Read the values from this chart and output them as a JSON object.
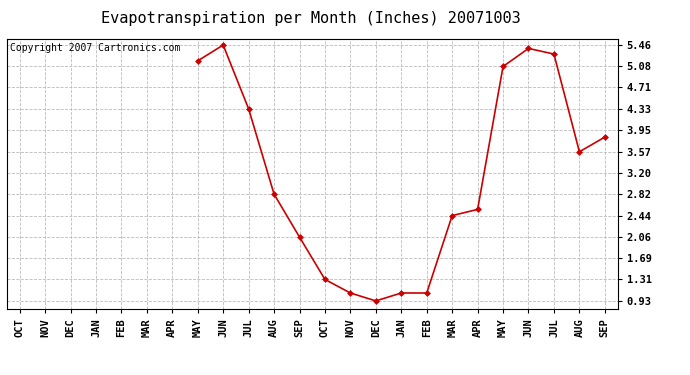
{
  "title": "Evapotranspiration per Month (Inches) 20071003",
  "copyright_text": "Copyright 2007 Cartronics.com",
  "months": [
    "OCT",
    "NOV",
    "DEC",
    "JAN",
    "FEB",
    "MAR",
    "APR",
    "MAY",
    "JUN",
    "JUL",
    "AUG",
    "SEP",
    "OCT",
    "NOV",
    "DEC",
    "JAN",
    "FEB",
    "MAR",
    "APR",
    "MAY",
    "JUN",
    "JUL",
    "AUG",
    "SEP"
  ],
  "values": [
    null,
    null,
    null,
    null,
    null,
    null,
    null,
    5.18,
    5.46,
    4.33,
    2.82,
    2.06,
    1.31,
    1.07,
    0.93,
    1.07,
    1.07,
    2.44,
    2.55,
    5.08,
    5.4,
    5.3,
    3.57,
    3.83
  ],
  "yticks": [
    0.93,
    1.31,
    1.69,
    2.06,
    2.44,
    2.82,
    3.2,
    3.57,
    3.95,
    4.33,
    4.71,
    5.08,
    5.46
  ],
  "ytick_labels": [
    "0.93",
    "1.31",
    "1.69",
    "2.06",
    "2.44",
    "2.82",
    "3.20",
    "3.57",
    "3.95",
    "4.33",
    "4.71",
    "5.08",
    "5.46"
  ],
  "line_color": "#cc0000",
  "marker": "D",
  "marker_size": 3,
  "background_color": "#ffffff",
  "grid_color": "#bbbbbb",
  "title_fontsize": 11,
  "tick_fontsize": 7.5,
  "copyright_fontsize": 7,
  "ylim_min": 0.78,
  "ylim_max": 5.56
}
